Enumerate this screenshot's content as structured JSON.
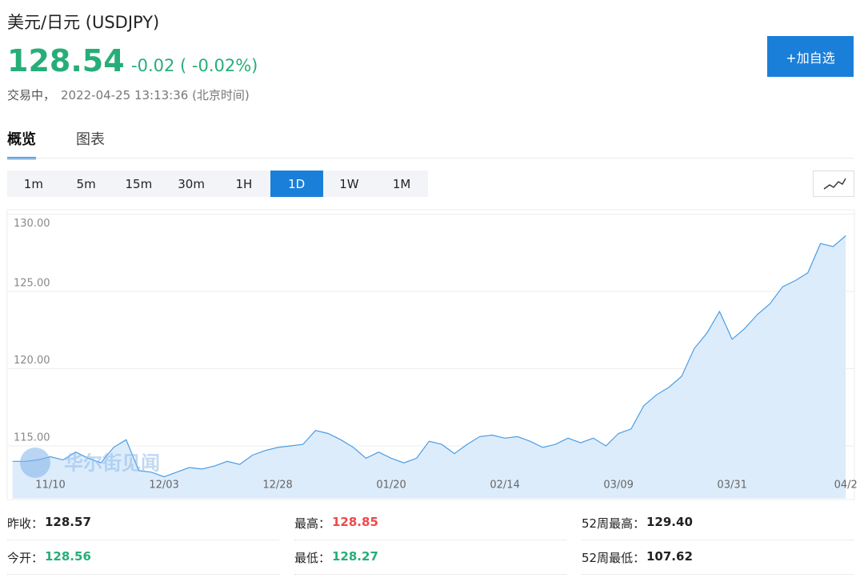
{
  "header": {
    "title": "美元/日元 (USDJPY)",
    "price": "128.54",
    "change": "-0.02 ( -0.02%)",
    "status": "交易中，",
    "timestamp": "2022-04-25 13:13:36 (北京时间)",
    "button": "+加自选"
  },
  "tabs": [
    {
      "label": "概览",
      "selected": true
    },
    {
      "label": "图表",
      "selected": false
    }
  ],
  "intervals": [
    {
      "label": "1m",
      "selected": false
    },
    {
      "label": "5m",
      "selected": false
    },
    {
      "label": "15m",
      "selected": false
    },
    {
      "label": "30m",
      "selected": false
    },
    {
      "label": "1H",
      "selected": false
    },
    {
      "label": "1D",
      "selected": true
    },
    {
      "label": "1W",
      "selected": false
    },
    {
      "label": "1M",
      "selected": false
    }
  ],
  "chart_data": {
    "type": "area",
    "color": "#4a9ee6",
    "fill": "#ddecfb",
    "grid": true,
    "watermark": "华尔街见闻",
    "categories": [
      null,
      null,
      null,
      "11/10",
      null,
      null,
      null,
      null,
      null,
      null,
      null,
      null,
      "12/03",
      null,
      null,
      null,
      null,
      null,
      null,
      null,
      null,
      "12/28",
      null,
      null,
      null,
      null,
      null,
      null,
      null,
      null,
      "01/20",
      null,
      null,
      null,
      null,
      null,
      null,
      null,
      null,
      "02/14",
      null,
      null,
      null,
      null,
      null,
      null,
      null,
      null,
      "03/09",
      null,
      null,
      null,
      null,
      null,
      null,
      null,
      null,
      "03/31",
      null,
      null,
      null,
      null,
      null,
      null,
      null,
      null,
      "04/2"
    ],
    "values": [
      114.0,
      114.0,
      114.1,
      114.3,
      114.1,
      114.6,
      114.2,
      113.9,
      114.9,
      115.4,
      113.4,
      113.3,
      113.0,
      113.3,
      113.6,
      113.5,
      113.7,
      114.0,
      113.8,
      114.4,
      114.7,
      114.9,
      115.0,
      115.1,
      116.0,
      115.8,
      115.4,
      114.9,
      114.2,
      114.6,
      114.2,
      113.9,
      114.2,
      115.3,
      115.1,
      114.5,
      115.1,
      115.6,
      115.7,
      115.5,
      115.6,
      115.3,
      114.9,
      115.1,
      115.5,
      115.2,
      115.5,
      115.0,
      115.8,
      116.1,
      117.6,
      118.3,
      118.8,
      119.5,
      121.3,
      122.3,
      123.7,
      121.9,
      122.6,
      123.5,
      124.2,
      125.3,
      125.7,
      126.2,
      128.1,
      127.9,
      128.6
    ],
    "ylim": [
      111.6,
      130
    ],
    "yticks": [
      {
        "value": 115,
        "label": "115.00"
      },
      {
        "value": 120,
        "label": "120.00"
      },
      {
        "value": 125,
        "label": "125.00"
      },
      {
        "value": 130,
        "label": "130.00"
      }
    ]
  },
  "stats": [
    [
      {
        "label": "昨收：",
        "value": "128.57",
        "color": "#222222"
      },
      {
        "label": "最高：",
        "value": "128.85",
        "color": "#f04848"
      },
      {
        "label": "52周最高：",
        "value": "129.40",
        "color": "#222222"
      }
    ],
    [
      {
        "label": "今开：",
        "value": "128.56",
        "color": "#27ae78"
      },
      {
        "label": "最低：",
        "value": "128.27",
        "color": "#27ae78"
      },
      {
        "label": "52周最低：",
        "value": "107.62",
        "color": "#222222"
      }
    ]
  ]
}
